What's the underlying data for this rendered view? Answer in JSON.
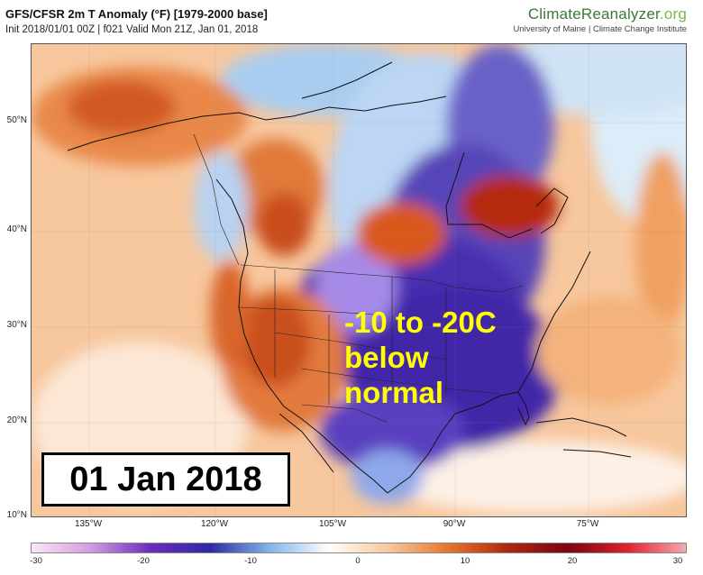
{
  "header": {
    "title": "GFS/CFSR 2m T Anomaly (°F) [1979-2000 base]",
    "subtitle": "Init 2018/01/01 00Z | f021 Valid Mon 21Z, Jan 01, 2018"
  },
  "brand": {
    "name_main": "ClimateReanalyzer",
    "name_suffix": ".org",
    "subtitle": "University of Maine | Climate Change Institute"
  },
  "map": {
    "lat_labels": [
      "50°N",
      "40°N",
      "30°N",
      "20°N",
      "10°N"
    ],
    "lon_labels": [
      "135°W",
      "120°W",
      "105°W",
      "90°W",
      "75°W"
    ],
    "annotation": "-10 to -20C\nbelow\nnormal",
    "date_label": "01 Jan 2018"
  },
  "colorbar": {
    "ticks": [
      "-30",
      "-20",
      "-10",
      "0",
      "10",
      "20",
      "30"
    ],
    "range": [
      -30,
      30
    ],
    "colors": [
      "#fbe6f3",
      "#d59ae2",
      "#6a2cbf",
      "#2e2aa6",
      "#7fb5ea",
      "#ffffff",
      "#f7c79d",
      "#e8772c",
      "#b0260e",
      "#7a0410",
      "#e0202a",
      "#f4a8b4"
    ]
  }
}
